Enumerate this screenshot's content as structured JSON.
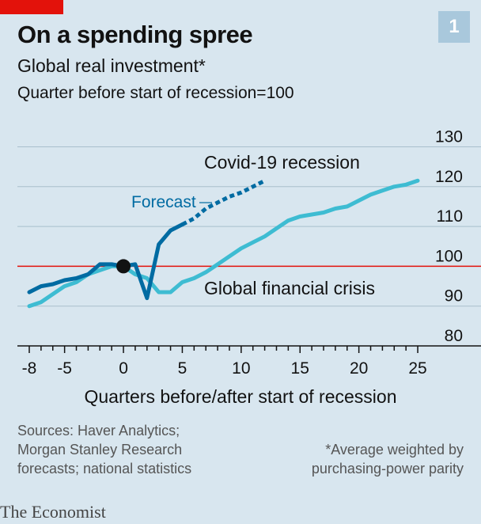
{
  "header": {
    "title": "On a spending spree",
    "subtitle": "Global real investment*",
    "subtitle2": "Quarter before start of recession=100",
    "badge": "1"
  },
  "footer": {
    "source": "Sources: Haver Analytics; Morgan Stanley Research forecasts; national statistics",
    "footnote": "*Average weighted by purchasing-power parity",
    "brand": "The Economist"
  },
  "colors": {
    "background": "#d8e6ef",
    "covid": "#006ba2",
    "gfc": "#3ebcd2",
    "baseline": "#e3120b",
    "accent": "#e3120b"
  },
  "chart_data": {
    "type": "line",
    "title": "On a spending spree",
    "xlabel": "Quarters before/after start of recession",
    "ylabel": "Quarter before start of recession=100",
    "xlim": [
      -8,
      25
    ],
    "ylim": [
      80,
      130
    ],
    "x_ticks": [
      -8,
      -5,
      0,
      5,
      10,
      15,
      20,
      25
    ],
    "y_ticks": [
      80,
      90,
      100,
      110,
      120,
      130
    ],
    "y_tick_labels": [
      "80",
      "90",
      "100",
      "110",
      "120",
      "130"
    ],
    "x_tick_labels": [
      "-8",
      "-5",
      "0",
      "5",
      "10",
      "15",
      "20",
      "25"
    ],
    "baseline": 100,
    "grid": true,
    "series": [
      {
        "name": "Covid-19 recession",
        "x": [
          -8,
          -7,
          -6,
          -5,
          -4,
          -3,
          -2,
          -1,
          0,
          1,
          2,
          3,
          4,
          5
        ],
        "y": [
          93.5,
          95,
          95.5,
          96.5,
          97,
          98,
          100.5,
          100.5,
          100,
          100.5,
          92,
          105.5,
          109,
          110.5
        ]
      },
      {
        "name": "Forecast",
        "x": [
          5,
          6,
          7,
          8,
          9,
          10,
          11,
          12
        ],
        "y": [
          110.5,
          112,
          114.5,
          116,
          117.5,
          118.5,
          120,
          121.5
        ]
      },
      {
        "name": "Global financial crisis",
        "x": [
          -8,
          -7,
          -6,
          -5,
          -4,
          -3,
          -2,
          -1,
          0,
          1,
          2,
          3,
          4,
          5,
          6,
          7,
          8,
          9,
          10,
          11,
          12,
          13,
          14,
          15,
          16,
          17,
          18,
          19,
          20,
          21,
          22,
          23,
          24,
          25
        ],
        "y": [
          90,
          91,
          93,
          95,
          96,
          98,
          99,
          100,
          100,
          98,
          97,
          93.5,
          93.5,
          96,
          97,
          98.5,
          100.5,
          102.5,
          104.5,
          106,
          107.5,
          109.5,
          111.5,
          112.5,
          113,
          113.5,
          114.5,
          115,
          116.5,
          118,
          119,
          120,
          120.5,
          121.5
        ]
      }
    ],
    "marker": {
      "x": 0,
      "y": 100
    },
    "annotations": {
      "covid": "Covid-19 recession",
      "forecast": "Forecast",
      "gfc": "Global financial crisis"
    }
  }
}
